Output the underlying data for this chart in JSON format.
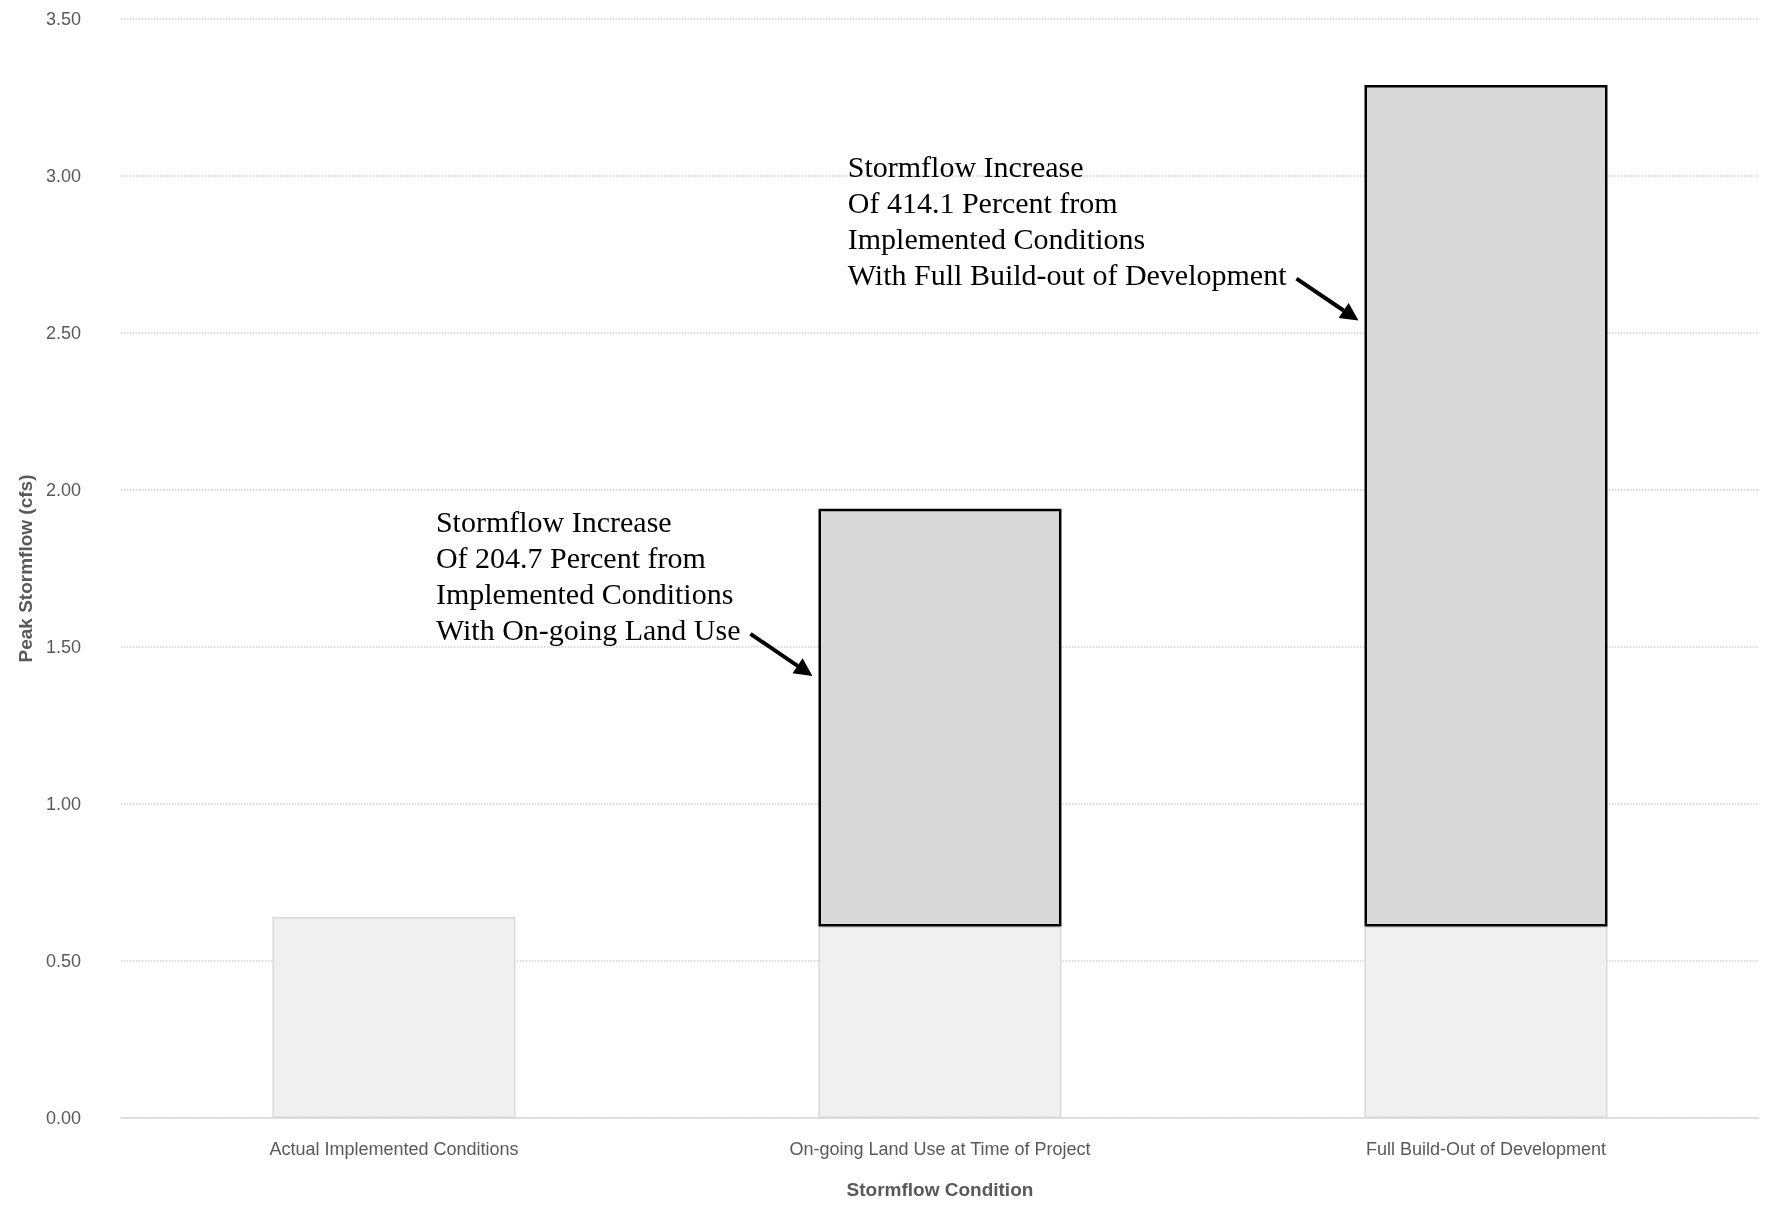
{
  "chart_data": {
    "type": "bar",
    "stacked": true,
    "xlabel": "Stormflow Condition",
    "ylabel": "Peak Stormflow (cfs)",
    "categories": [
      "Actual Implemented Conditions",
      "On-going Land Use at Time of Project",
      "Full Build-Out of Development"
    ],
    "series": [
      {
        "color": "#f0f0f0",
        "values": [
          0.64,
          0.61,
          0.61
        ]
      },
      {
        "color": "#d9d9d9",
        "values": [
          null,
          1.33,
          2.68
        ]
      }
    ],
    "ylim": [
      0,
      3.5
    ],
    "yticks": [
      {
        "value": 0,
        "label": "0.00"
      },
      {
        "value": 0.5,
        "label": "0.50"
      },
      {
        "value": 1,
        "label": "1.00"
      },
      {
        "value": 1.5,
        "label": "1.50"
      },
      {
        "value": 2,
        "label": "2.00"
      },
      {
        "value": 2.5,
        "label": "2.50"
      },
      {
        "value": 3,
        "label": "3.00"
      },
      {
        "value": 3.5,
        "label": "3.50"
      }
    ],
    "grid": "y",
    "annotations": [
      "Stormflow Increase\nOf 204.7 Percent from\nImplemented Conditions\nWith On-going Land Use",
      "Stormflow Increase\nOf 414.1 Percent from\nImplemented Conditions\nWith Full Build-out of Development"
    ]
  }
}
